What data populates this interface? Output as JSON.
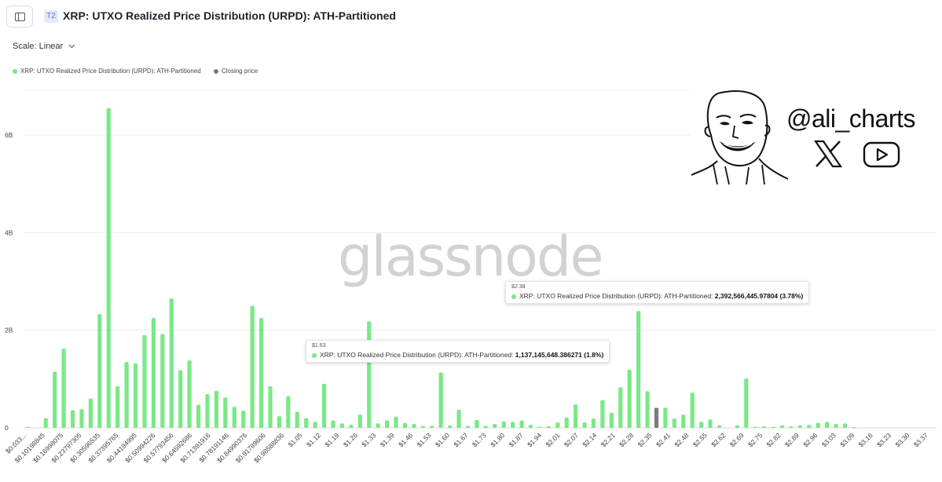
{
  "header": {
    "tier_badge": "T2",
    "title": "XRP: UTXO Realized Price Distribution (URPD): ATH-Partitioned"
  },
  "controls": {
    "scale_label": "Scale: Linear"
  },
  "legend": {
    "items": [
      {
        "label": "XRP: UTXO Realized Price Distribution (URPD): ATH-Partitioned",
        "color": "#7ae886"
      },
      {
        "label": "Closing price",
        "color": "#7a7a7a"
      }
    ]
  },
  "watermark": "glassnode",
  "branding": {
    "handle": "@ali_charts",
    "icons": [
      "cartoon-face-icon",
      "x-logo-icon",
      "youtube-icon"
    ]
  },
  "tooltips": [
    {
      "price": "$2.38",
      "series": "XRP: UTXO Realized Price Distribution (URPD): ATH-Partitioned:",
      "value": "2,392,566,445.97804 (3.78%)"
    },
    {
      "price": "$1.63",
      "series": "XRP: UTXO Realized Price Distribution (URPD): ATH-Partitioned:",
      "value": "1,137,145,648.386271 (1.8%)"
    }
  ],
  "chart_data": {
    "type": "bar",
    "title": "XRP: UTXO Realized Price Distribution (URPD): ATH-Partitioned",
    "ylim": [
      0,
      7000000000
    ],
    "y_ticks": [
      0,
      2000000000,
      4000000000,
      6000000000
    ],
    "y_tick_labels": [
      "0",
      "2B",
      "4B",
      "6B"
    ],
    "grid": true,
    "series_color": "#7ae886",
    "closing_price_color": "#7a7a7a",
    "closing_price_index": 70,
    "x_tick_labels": [
      "$0.033...",
      "$0.10198845",
      "$0.16998075",
      "$0.23797305",
      "$0.30596535",
      "$0.37395765",
      "$0.44194995",
      "$0.50994226",
      "$0.57793456",
      "$0.64592686",
      "$0.71391916",
      "$0.78191146",
      "$0.84990376",
      "$0.91789606",
      "$0.98588836",
      "$1.05",
      "$1.12",
      "$1.19",
      "$1.26",
      "$1.33",
      "$1.39",
      "$1.46",
      "$1.53",
      "$1.60",
      "$1.67",
      "$1.73",
      "$1.80",
      "$1.87",
      "$1.94",
      "$2.01",
      "$2.07",
      "$2.14",
      "$2.21",
      "$2.28",
      "$2.35",
      "$2.41",
      "$2.48",
      "$2.55",
      "$2.62",
      "$2.69",
      "$2.75",
      "$2.82",
      "$2.89",
      "$2.96",
      "$3.03",
      "$3.09",
      "$3.16",
      "$3.23",
      "$3.30",
      "$3.37"
    ],
    "values": [
      20000000,
      0,
      200000000,
      1150000000,
      1620000000,
      360000000,
      380000000,
      600000000,
      2330000000,
      6550000000,
      850000000,
      1350000000,
      1320000000,
      1900000000,
      2250000000,
      1920000000,
      2650000000,
      1180000000,
      1380000000,
      470000000,
      690000000,
      760000000,
      620000000,
      430000000,
      350000000,
      2500000000,
      2250000000,
      850000000,
      240000000,
      650000000,
      330000000,
      200000000,
      120000000,
      900000000,
      150000000,
      90000000,
      60000000,
      270000000,
      2180000000,
      90000000,
      150000000,
      230000000,
      100000000,
      80000000,
      40000000,
      40000000,
      1137000000,
      50000000,
      370000000,
      40000000,
      160000000,
      40000000,
      80000000,
      130000000,
      120000000,
      150000000,
      60000000,
      20000000,
      30000000,
      110000000,
      210000000,
      480000000,
      110000000,
      190000000,
      570000000,
      310000000,
      830000000,
      1190000000,
      2392000000,
      750000000,
      410000000,
      410000000,
      190000000,
      270000000,
      720000000,
      120000000,
      170000000,
      50000000,
      0,
      50000000,
      1010000000,
      20000000,
      30000000,
      20000000,
      50000000,
      30000000,
      50000000,
      60000000,
      100000000,
      120000000,
      80000000,
      90000000,
      10000000,
      0,
      0,
      0,
      0
    ]
  }
}
